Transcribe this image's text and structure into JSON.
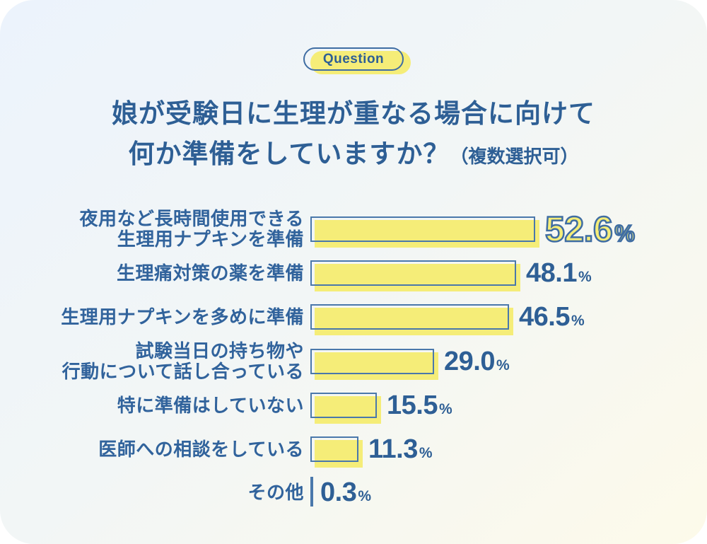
{
  "badge": {
    "label": "Question"
  },
  "title": {
    "line1": "娘が受験日に生理が重なる場合に向けて",
    "line2": "何か準備をしていますか？",
    "note": "（複数選択可）"
  },
  "unit": "%",
  "colors": {
    "text_blue": "#2e5f95",
    "outline_blue": "#4a78ab",
    "bar_yellow": "#f5ed78",
    "bg_top_left": "#ecf3fc",
    "bg_bottom_right": "#fdfaea"
  },
  "chart_data": {
    "type": "bar",
    "orientation": "horizontal",
    "title": "娘が受験日に生理が重なる場合に向けて何か準備をしていますか？（複数選択可）",
    "xlabel": "",
    "ylabel": "",
    "unit": "%",
    "xlim": [
      0,
      55
    ],
    "grid": false,
    "legend": "none",
    "highlight_index": 0,
    "categories": [
      "夜用など長時間使用できる生理用ナプキンを準備",
      "生理痛対策の薬を準備",
      "生理用ナプキンを多めに準備",
      "試験当日の持ち物や行動について話し合っている",
      "特に準備はしていない",
      "医師への相談をしている",
      "その他"
    ],
    "values": [
      52.6,
      48.1,
      46.5,
      29.0,
      15.5,
      11.3,
      0.3
    ]
  },
  "rows": [
    {
      "label_lines": [
        "夜用など長時間使用できる",
        "生理用ナプキンを準備"
      ],
      "value": "52.6",
      "percent": 52.6,
      "highlight": true
    },
    {
      "label_lines": [
        "生理痛対策の薬を準備"
      ],
      "value": "48.1",
      "percent": 48.1,
      "highlight": false
    },
    {
      "label_lines": [
        "生理用ナプキンを多めに準備"
      ],
      "value": "46.5",
      "percent": 46.5,
      "highlight": false
    },
    {
      "label_lines": [
        "試験当日の持ち物や",
        "行動について話し合っている"
      ],
      "value": "29.0",
      "percent": 29.0,
      "highlight": false
    },
    {
      "label_lines": [
        "特に準備はしていない"
      ],
      "value": "15.5",
      "percent": 15.5,
      "highlight": false
    },
    {
      "label_lines": [
        "医師への相談をしている"
      ],
      "value": "11.3",
      "percent": 11.3,
      "highlight": false
    },
    {
      "label_lines": [
        "その他"
      ],
      "value": "0.3",
      "percent": 0.3,
      "highlight": false
    }
  ]
}
